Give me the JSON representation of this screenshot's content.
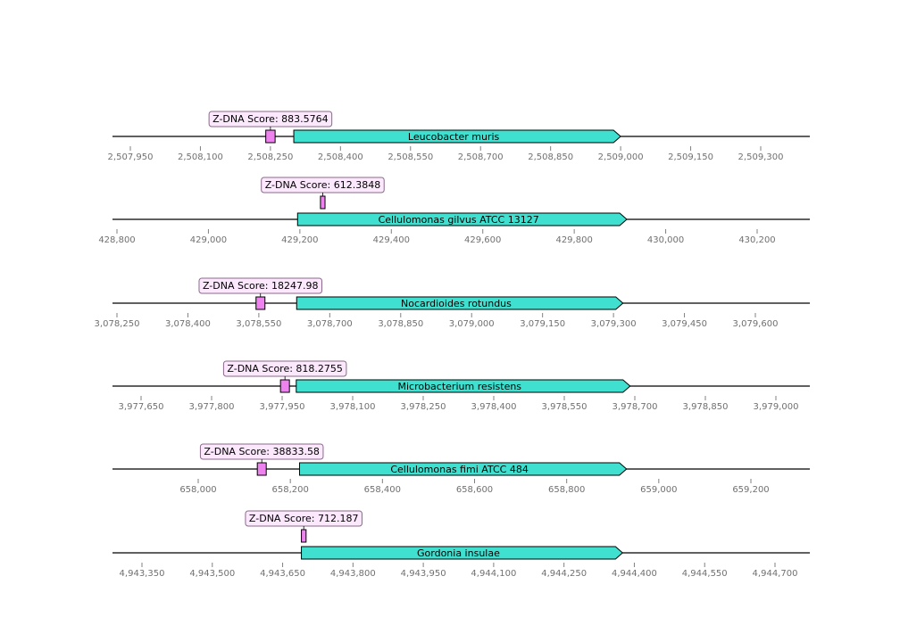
{
  "colors": {
    "gene": "#40e0d0",
    "zdna": "#ee82ee",
    "score_box": "#fce8fc",
    "axis": "#808080"
  },
  "tracks": [
    {
      "gene": {
        "label": "Leucobacter muris",
        "start": 2508300,
        "end": 2509000
      },
      "zdna": {
        "label": "Z-DNA Score: 883.5764",
        "start": 2508240,
        "end": 2508260
      },
      "ticks": [
        "2,507,950",
        "2,508,100",
        "2,508,250",
        "2,508,400",
        "2,508,550",
        "2,508,700",
        "2,508,850",
        "2,509,000",
        "2,509,150",
        "2,509,300"
      ]
    },
    {
      "gene": {
        "label": "Cellulomonas gilvus ATCC 13127",
        "start": 429195,
        "end": 429915
      },
      "zdna": {
        "label": "Z-DNA Score: 612.3848",
        "start": 429245,
        "end": 429255
      },
      "ticks": [
        "428,800",
        "429,000",
        "429,200",
        "429,400",
        "429,600",
        "429,800",
        "430,000",
        "430,200"
      ]
    },
    {
      "gene": {
        "label": "Nocardioides rotundus",
        "start": 3078630,
        "end": 3079320
      },
      "zdna": {
        "label": "Z-DNA Score: 18247.98",
        "start": 3078545,
        "end": 3078562
      },
      "ticks": [
        "3,078,250",
        "3,078,400",
        "3,078,550",
        "3,078,700",
        "3,078,850",
        "3,079,000",
        "3,079,150",
        "3,079,300",
        "3,079,450",
        "3,079,600"
      ]
    },
    {
      "gene": {
        "label": "Microbacterium resistens",
        "start": 3977980,
        "end": 3978690
      },
      "zdna": {
        "label": "Z-DNA Score: 818.2755",
        "start": 3977948,
        "end": 3977964
      },
      "ticks": [
        "3,977,650",
        "3,977,800",
        "3,977,950",
        "3,978,100",
        "3,978,250",
        "3,978,400",
        "3,978,550",
        "3,978,700",
        "3,978,850",
        "3,979,000"
      ]
    },
    {
      "gene": {
        "label": "Cellulomonas fimi ATCC 484",
        "start": 658220,
        "end": 658930
      },
      "zdna": {
        "label": "Z-DNA Score: 38833.58",
        "start": 658130,
        "end": 658146
      },
      "ticks": [
        "658,000",
        "658,200",
        "658,400",
        "658,600",
        "658,800",
        "659,000",
        "659,200"
      ]
    },
    {
      "gene": {
        "label": "Gordonia insulae",
        "start": 4943690,
        "end": 4944375
      },
      "zdna": {
        "label": "Z-DNA Score: 712.187",
        "start": 4943690,
        "end": 4943700
      },
      "ticks": [
        "4,943,350",
        "4,943,500",
        "4,943,650",
        "4,943,800",
        "4,943,950",
        "4,944,100",
        "4,944,250",
        "4,944,400",
        "4,944,550",
        "4,944,700"
      ]
    }
  ]
}
